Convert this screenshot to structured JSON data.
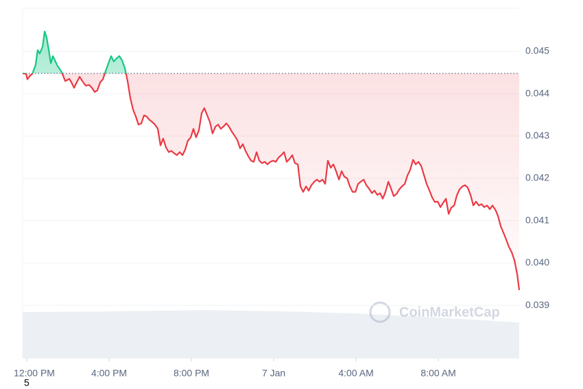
{
  "chart_data": {
    "type": "line",
    "watermark": "CoinMarketCap",
    "footnote": "5",
    "baseline": 0.04448,
    "up_color": "#16c784",
    "down_color": "#ea3943",
    "xlim": [
      -0.2,
      23.93
    ],
    "xticks": [
      {
        "value": 0,
        "label": "12:00 PM"
      },
      {
        "value": 4,
        "label": "4:00 PM"
      },
      {
        "value": 8,
        "label": "8:00 PM"
      },
      {
        "value": 12,
        "label": "7 Jan"
      },
      {
        "value": 16,
        "label": "4:00 AM"
      },
      {
        "value": 20,
        "label": "8:00 AM"
      }
    ],
    "ylim": [
      0.03892,
      0.04602
    ],
    "yticks": [
      {
        "value": 0.039,
        "label": "0.039"
      },
      {
        "value": 0.04,
        "label": "0.040"
      },
      {
        "value": 0.041,
        "label": "0.041"
      },
      {
        "value": 0.042,
        "label": "0.042"
      },
      {
        "value": 0.043,
        "label": "0.043"
      },
      {
        "value": 0.044,
        "label": "0.044"
      },
      {
        "value": 0.045,
        "label": "0.045"
      }
    ],
    "grid": true,
    "x": [
      -0.2,
      -0.03,
      0.03,
      0.17,
      0.27,
      0.43,
      0.53,
      0.63,
      0.77,
      0.87,
      0.97,
      1.07,
      1.17,
      1.27,
      1.37,
      1.47,
      1.7,
      1.87,
      2.07,
      2.17,
      2.3,
      2.43,
      2.57,
      2.7,
      2.87,
      3.03,
      3.17,
      3.3,
      3.43,
      3.57,
      3.7,
      3.83,
      3.97,
      4.1,
      4.23,
      4.37,
      4.5,
      4.63,
      4.77,
      4.9,
      5.03,
      5.17,
      5.3,
      5.43,
      5.57,
      5.7,
      5.83,
      5.97,
      6.1,
      6.23,
      6.37,
      6.5,
      6.63,
      6.77,
      6.9,
      7.03,
      7.17,
      7.3,
      7.43,
      7.57,
      7.7,
      7.83,
      7.97,
      8.1,
      8.23,
      8.37,
      8.5,
      8.63,
      8.77,
      8.9,
      9.03,
      9.17,
      9.3,
      9.43,
      9.57,
      9.7,
      9.83,
      9.97,
      10.1,
      10.23,
      10.37,
      10.5,
      10.63,
      10.77,
      10.9,
      11.03,
      11.17,
      11.3,
      11.43,
      11.57,
      11.7,
      11.83,
      11.97,
      12.1,
      12.23,
      12.37,
      12.5,
      12.63,
      12.77,
      12.9,
      13.03,
      13.17,
      13.3,
      13.43,
      13.57,
      13.7,
      13.83,
      13.97,
      14.1,
      14.23,
      14.37,
      14.5,
      14.63,
      14.77,
      14.9,
      15.03,
      15.17,
      15.3,
      15.43,
      15.57,
      15.7,
      15.83,
      15.97,
      16.1,
      16.23,
      16.37,
      16.5,
      16.63,
      16.77,
      16.9,
      17.03,
      17.17,
      17.3,
      17.43,
      17.57,
      17.7,
      17.83,
      17.97,
      18.1,
      18.23,
      18.37,
      18.5,
      18.63,
      18.77,
      18.9,
      19.03,
      19.17,
      19.3,
      19.43,
      19.57,
      19.7,
      19.83,
      19.97,
      20.1,
      20.23,
      20.37,
      20.5,
      20.63,
      20.77,
      20.9,
      21.03,
      21.17,
      21.3,
      21.43,
      21.57,
      21.7,
      21.83,
      21.97,
      22.1,
      22.23,
      22.37,
      22.5,
      22.63,
      22.77,
      22.9,
      23.03,
      23.17,
      23.3,
      23.43,
      23.57,
      23.7,
      23.83,
      23.93
    ],
    "series": [
      {
        "values": [
          0.04448,
          0.04447,
          0.04434,
          0.04443,
          0.04447,
          0.04468,
          0.04503,
          0.04495,
          0.04511,
          0.04547,
          0.04532,
          0.04503,
          0.04472,
          0.04489,
          0.04479,
          0.04468,
          0.04451,
          0.0443,
          0.04435,
          0.04427,
          0.04414,
          0.04427,
          0.0444,
          0.0443,
          0.04419,
          0.04421,
          0.04414,
          0.04404,
          0.04408,
          0.04427,
          0.04434,
          0.04453,
          0.04472,
          0.04489,
          0.04476,
          0.04484,
          0.04489,
          0.04479,
          0.0446,
          0.0443,
          0.04391,
          0.04362,
          0.04346,
          0.04327,
          0.0433,
          0.04349,
          0.04346,
          0.04338,
          0.04333,
          0.04327,
          0.04317,
          0.04278,
          0.04294,
          0.04273,
          0.04262,
          0.04265,
          0.04259,
          0.04255,
          0.04262,
          0.04255,
          0.04268,
          0.04289,
          0.04297,
          0.04317,
          0.04297,
          0.04314,
          0.04354,
          0.04366,
          0.04349,
          0.04333,
          0.04306,
          0.04322,
          0.04327,
          0.04317,
          0.04323,
          0.0433,
          0.04322,
          0.0431,
          0.04301,
          0.04291,
          0.04271,
          0.04281,
          0.04265,
          0.04252,
          0.04242,
          0.04239,
          0.04262,
          0.04242,
          0.04236,
          0.04239,
          0.04233,
          0.04239,
          0.04242,
          0.04239,
          0.04249,
          0.04255,
          0.04262,
          0.04239,
          0.04246,
          0.04255,
          0.04236,
          0.04233,
          0.04181,
          0.04168,
          0.04181,
          0.04171,
          0.04184,
          0.04192,
          0.04197,
          0.04192,
          0.04197,
          0.04187,
          0.04242,
          0.04225,
          0.04233,
          0.04217,
          0.04197,
          0.04217,
          0.04204,
          0.042,
          0.04181,
          0.04168,
          0.04168,
          0.04187,
          0.04192,
          0.04197,
          0.04184,
          0.04176,
          0.04165,
          0.04171,
          0.04161,
          0.04165,
          0.04152,
          0.04168,
          0.04192,
          0.04176,
          0.04158,
          0.04163,
          0.04174,
          0.04181,
          0.04187,
          0.04207,
          0.0422,
          0.04244,
          0.04233,
          0.04239,
          0.04229,
          0.04208,
          0.04187,
          0.04171,
          0.04155,
          0.04144,
          0.04145,
          0.04132,
          0.04142,
          0.04152,
          0.04116,
          0.04131,
          0.04136,
          0.0416,
          0.04174,
          0.04181,
          0.04184,
          0.04178,
          0.0416,
          0.04136,
          0.04145,
          0.04136,
          0.04139,
          0.04132,
          0.04136,
          0.04127,
          0.04136,
          0.04126,
          0.04111,
          0.04087,
          0.04071,
          0.04055,
          0.04038,
          0.04025,
          0.04006,
          0.03974,
          0.03936
        ]
      }
    ]
  }
}
